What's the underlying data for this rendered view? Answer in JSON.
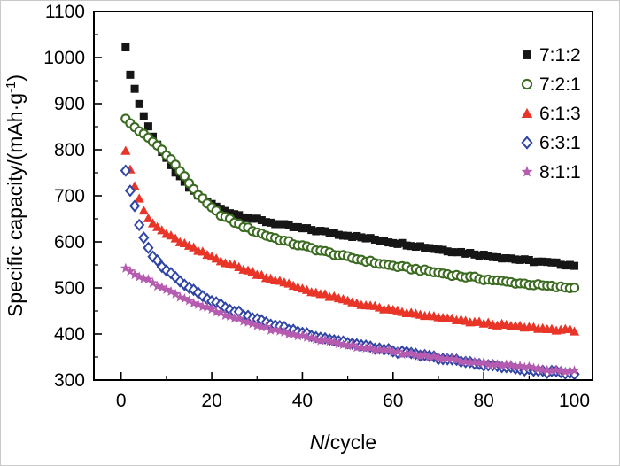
{
  "chart_data": {
    "type": "scatter",
    "title": "",
    "xlabel": {
      "italic": "N",
      "rest": "/cycle"
    },
    "ylabel": {
      "main": "Specific capacity/(mAh·g",
      "sup": "-1",
      "close": ")"
    },
    "x_axis": {
      "min": -6,
      "max": 104,
      "ticks": [
        0,
        20,
        40,
        60,
        80,
        100
      ],
      "minor_step": 10
    },
    "y_axis": {
      "min": 300,
      "max": 1100,
      "ticks": [
        300,
        400,
        500,
        600,
        700,
        800,
        900,
        1000,
        1100
      ],
      "minor_step": 50
    },
    "grid": false,
    "legend_position": "top-right",
    "series": [
      {
        "name": "7:1:2",
        "marker": "square",
        "style": "filled",
        "color": "#161616",
        "points": [
          [
            1,
            1020
          ],
          [
            2,
            965
          ],
          [
            3,
            932
          ],
          [
            4,
            900
          ],
          [
            5,
            873
          ],
          [
            6,
            850
          ],
          [
            7,
            830
          ],
          [
            8,
            812
          ],
          [
            9,
            795
          ],
          [
            10,
            780
          ],
          [
            11,
            765
          ],
          [
            12,
            752
          ],
          [
            13,
            740
          ],
          [
            14,
            729
          ],
          [
            15,
            718
          ],
          [
            16,
            709
          ],
          [
            17,
            701
          ],
          [
            18,
            694
          ],
          [
            19,
            687
          ],
          [
            20,
            681
          ],
          [
            22,
            671
          ],
          [
            24,
            664
          ],
          [
            26,
            658
          ],
          [
            28,
            653
          ],
          [
            30,
            648
          ],
          [
            32,
            644
          ],
          [
            34,
            640
          ],
          [
            36,
            636
          ],
          [
            38,
            632
          ],
          [
            40,
            629
          ],
          [
            42,
            626
          ],
          [
            44,
            623
          ],
          [
            46,
            620
          ],
          [
            48,
            617
          ],
          [
            50,
            614
          ],
          [
            52,
            611
          ],
          [
            54,
            608
          ],
          [
            56,
            605
          ],
          [
            58,
            602
          ],
          [
            60,
            599
          ],
          [
            62,
            596
          ],
          [
            64,
            593
          ],
          [
            66,
            590
          ],
          [
            68,
            587
          ],
          [
            70,
            584
          ],
          [
            72,
            581
          ],
          [
            74,
            579
          ],
          [
            76,
            576
          ],
          [
            78,
            574
          ],
          [
            80,
            571
          ],
          [
            82,
            569
          ],
          [
            84,
            566
          ],
          [
            86,
            564
          ],
          [
            88,
            561
          ],
          [
            90,
            559
          ],
          [
            92,
            557
          ],
          [
            94,
            555
          ],
          [
            96,
            553
          ],
          [
            98,
            551
          ],
          [
            100,
            549
          ]
        ]
      },
      {
        "name": "7:2:1",
        "marker": "circle",
        "style": "open",
        "color": "#3c6b22",
        "points": [
          [
            1,
            866
          ],
          [
            2,
            857
          ],
          [
            3,
            849
          ],
          [
            4,
            841
          ],
          [
            5,
            833
          ],
          [
            6,
            825
          ],
          [
            7,
            817
          ],
          [
            8,
            809
          ],
          [
            9,
            800
          ],
          [
            10,
            790
          ],
          [
            11,
            779
          ],
          [
            12,
            767
          ],
          [
            13,
            754
          ],
          [
            14,
            741
          ],
          [
            15,
            728
          ],
          [
            16,
            715
          ],
          [
            17,
            703
          ],
          [
            18,
            692
          ],
          [
            19,
            682
          ],
          [
            20,
            673
          ],
          [
            22,
            659
          ],
          [
            24,
            648
          ],
          [
            26,
            638
          ],
          [
            28,
            629
          ],
          [
            30,
            621
          ],
          [
            32,
            614
          ],
          [
            34,
            608
          ],
          [
            36,
            602
          ],
          [
            38,
            596
          ],
          [
            40,
            591
          ],
          [
            42,
            586
          ],
          [
            44,
            581
          ],
          [
            46,
            576
          ],
          [
            48,
            571
          ],
          [
            50,
            567
          ],
          [
            52,
            563
          ],
          [
            54,
            559
          ],
          [
            56,
            555
          ],
          [
            58,
            551
          ],
          [
            60,
            548
          ],
          [
            62,
            545
          ],
          [
            64,
            542
          ],
          [
            66,
            539
          ],
          [
            68,
            536
          ],
          [
            70,
            533
          ],
          [
            72,
            530
          ],
          [
            74,
            527
          ],
          [
            76,
            524
          ],
          [
            78,
            522
          ],
          [
            80,
            519
          ],
          [
            82,
            517
          ],
          [
            84,
            514
          ],
          [
            86,
            512
          ],
          [
            88,
            510
          ],
          [
            90,
            508
          ],
          [
            92,
            506
          ],
          [
            94,
            504
          ],
          [
            96,
            502
          ],
          [
            98,
            501
          ],
          [
            100,
            500
          ]
        ]
      },
      {
        "name": "6:1:3",
        "marker": "triangle",
        "style": "filled",
        "color": "#e93528",
        "points": [
          [
            1,
            800
          ],
          [
            2,
            758
          ],
          [
            3,
            722
          ],
          [
            4,
            692
          ],
          [
            5,
            668
          ],
          [
            6,
            651
          ],
          [
            7,
            640
          ],
          [
            8,
            632
          ],
          [
            9,
            625
          ],
          [
            10,
            618
          ],
          [
            11,
            612
          ],
          [
            12,
            606
          ],
          [
            13,
            601
          ],
          [
            14,
            596
          ],
          [
            15,
            591
          ],
          [
            16,
            586
          ],
          [
            17,
            581
          ],
          [
            18,
            577
          ],
          [
            19,
            572
          ],
          [
            20,
            568
          ],
          [
            22,
            560
          ],
          [
            24,
            552
          ],
          [
            26,
            545
          ],
          [
            28,
            538
          ],
          [
            30,
            531
          ],
          [
            32,
            524
          ],
          [
            34,
            518
          ],
          [
            36,
            511
          ],
          [
            38,
            505
          ],
          [
            40,
            499
          ],
          [
            42,
            493
          ],
          [
            44,
            487
          ],
          [
            46,
            482
          ],
          [
            48,
            477
          ],
          [
            50,
            472
          ],
          [
            52,
            467
          ],
          [
            54,
            463
          ],
          [
            56,
            459
          ],
          [
            58,
            455
          ],
          [
            60,
            451
          ],
          [
            62,
            448
          ],
          [
            64,
            445
          ],
          [
            66,
            442
          ],
          [
            68,
            439
          ],
          [
            70,
            436
          ],
          [
            72,
            433
          ],
          [
            74,
            431
          ],
          [
            76,
            428
          ],
          [
            78,
            426
          ],
          [
            80,
            424
          ],
          [
            82,
            422
          ],
          [
            84,
            420
          ],
          [
            86,
            418
          ],
          [
            88,
            416
          ],
          [
            90,
            414
          ],
          [
            92,
            413
          ],
          [
            94,
            411
          ],
          [
            96,
            410
          ],
          [
            98,
            409
          ],
          [
            100,
            408
          ]
        ]
      },
      {
        "name": "6:3:1",
        "marker": "diamond",
        "style": "open",
        "color": "#2e45a5",
        "points": [
          [
            1,
            755
          ],
          [
            2,
            712
          ],
          [
            3,
            676
          ],
          [
            4,
            636
          ],
          [
            5,
            607
          ],
          [
            6,
            586
          ],
          [
            7,
            570
          ],
          [
            8,
            558
          ],
          [
            9,
            548
          ],
          [
            10,
            539
          ],
          [
            11,
            531
          ],
          [
            12,
            523
          ],
          [
            13,
            516
          ],
          [
            14,
            509
          ],
          [
            15,
            502
          ],
          [
            16,
            496
          ],
          [
            17,
            490
          ],
          [
            18,
            484
          ],
          [
            19,
            478
          ],
          [
            20,
            473
          ],
          [
            22,
            463
          ],
          [
            24,
            454
          ],
          [
            26,
            446
          ],
          [
            28,
            438
          ],
          [
            30,
            431
          ],
          [
            32,
            425
          ],
          [
            34,
            419
          ],
          [
            36,
            413
          ],
          [
            38,
            408
          ],
          [
            40,
            403
          ],
          [
            42,
            398
          ],
          [
            44,
            393
          ],
          [
            46,
            389
          ],
          [
            48,
            385
          ],
          [
            50,
            381
          ],
          [
            52,
            377
          ],
          [
            54,
            373
          ],
          [
            56,
            370
          ],
          [
            58,
            366
          ],
          [
            60,
            363
          ],
          [
            62,
            360
          ],
          [
            64,
            357
          ],
          [
            66,
            354
          ],
          [
            68,
            351
          ],
          [
            70,
            348
          ],
          [
            72,
            345
          ],
          [
            74,
            342
          ],
          [
            76,
            339
          ],
          [
            78,
            336
          ],
          [
            80,
            334
          ],
          [
            82,
            331
          ],
          [
            84,
            329
          ],
          [
            86,
            326
          ],
          [
            88,
            324
          ],
          [
            90,
            322
          ],
          [
            92,
            320
          ],
          [
            94,
            318
          ],
          [
            96,
            317
          ],
          [
            98,
            316
          ],
          [
            100,
            315
          ]
        ]
      },
      {
        "name": "8:1:1",
        "marker": "star",
        "style": "filled",
        "color": "#b55bb0",
        "points": [
          [
            1,
            541
          ],
          [
            2,
            536
          ],
          [
            3,
            531
          ],
          [
            4,
            526
          ],
          [
            5,
            521
          ],
          [
            6,
            516
          ],
          [
            7,
            511
          ],
          [
            8,
            506
          ],
          [
            9,
            501
          ],
          [
            10,
            496
          ],
          [
            11,
            491
          ],
          [
            12,
            486
          ],
          [
            13,
            482
          ],
          [
            14,
            477
          ],
          [
            15,
            473
          ],
          [
            16,
            468
          ],
          [
            17,
            464
          ],
          [
            18,
            460
          ],
          [
            19,
            456
          ],
          [
            20,
            452
          ],
          [
            22,
            444
          ],
          [
            24,
            437
          ],
          [
            26,
            431
          ],
          [
            28,
            425
          ],
          [
            30,
            419
          ],
          [
            32,
            413
          ],
          [
            34,
            408
          ],
          [
            36,
            403
          ],
          [
            38,
            399
          ],
          [
            40,
            395
          ],
          [
            42,
            391
          ],
          [
            44,
            387
          ],
          [
            46,
            383
          ],
          [
            48,
            380
          ],
          [
            50,
            376
          ],
          [
            52,
            373
          ],
          [
            54,
            370
          ],
          [
            56,
            367
          ],
          [
            58,
            364
          ],
          [
            60,
            361
          ],
          [
            62,
            358
          ],
          [
            64,
            356
          ],
          [
            66,
            353
          ],
          [
            68,
            351
          ],
          [
            70,
            348
          ],
          [
            72,
            346
          ],
          [
            74,
            343
          ],
          [
            76,
            341
          ],
          [
            78,
            339
          ],
          [
            80,
            337
          ],
          [
            82,
            335
          ],
          [
            84,
            333
          ],
          [
            86,
            331
          ],
          [
            88,
            329
          ],
          [
            90,
            327
          ],
          [
            92,
            325
          ],
          [
            94,
            323
          ],
          [
            96,
            321
          ],
          [
            98,
            320
          ],
          [
            100,
            319
          ]
        ]
      }
    ]
  }
}
